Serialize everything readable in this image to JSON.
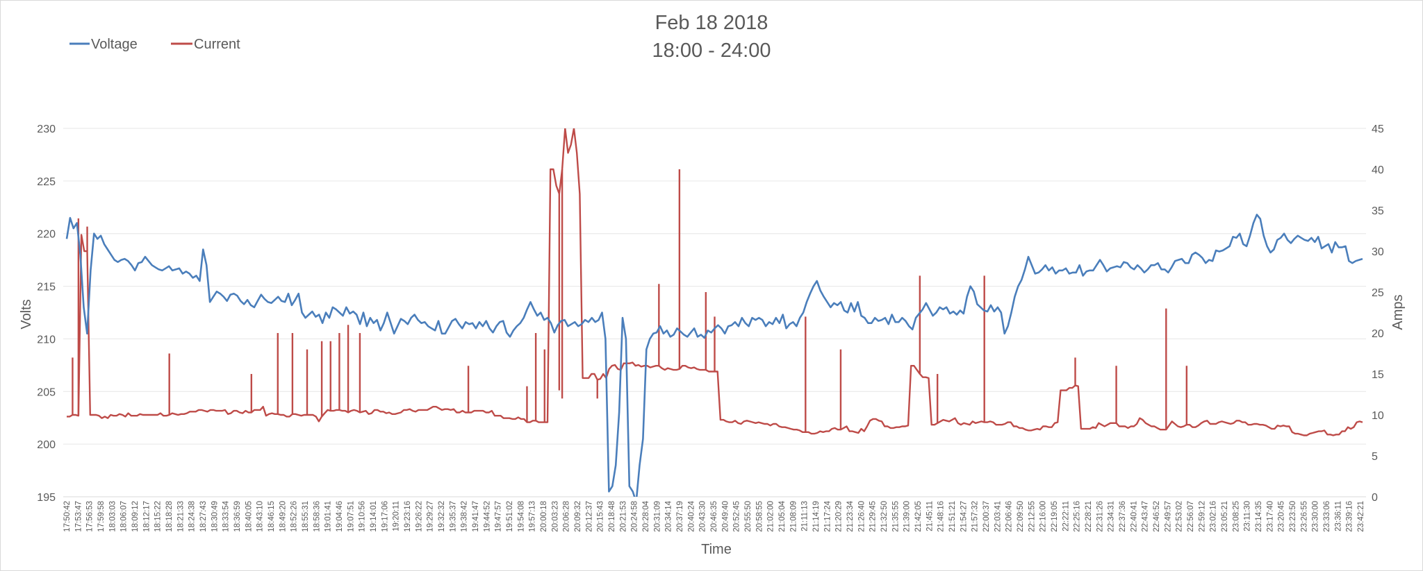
{
  "chart_data": {
    "type": "line",
    "title_line1": "Feb 18 2018",
    "title_line2": "18:00 - 24:00",
    "xlabel": "Time",
    "ylabel_left": "Volts",
    "ylabel_right": "Amps",
    "ylim_left": [
      195,
      230
    ],
    "ylim_right": [
      0,
      45
    ],
    "yticks_left": [
      "195",
      "200",
      "205",
      "210",
      "215",
      "220",
      "225",
      "230"
    ],
    "yticks_right": [
      "0",
      "5",
      "10",
      "15",
      "20",
      "25",
      "30",
      "35",
      "40",
      "45"
    ],
    "grid": true,
    "legend_position": "top-left",
    "x_tick_labels": [
      "17:50:42",
      "17:53:47",
      "17:56:53",
      "17:59:58",
      "18:03:03",
      "18:06:07",
      "18:09:12",
      "18:12:17",
      "18:15:22",
      "18:18:28",
      "18:21:33",
      "18:24:38",
      "18:27:43",
      "18:30:49",
      "18:33:54",
      "18:36:59",
      "18:40:05",
      "18:43:10",
      "18:46:15",
      "18:49:20",
      "18:52:26",
      "18:55:31",
      "18:58:36",
      "19:01:41",
      "19:04:46",
      "19:07:51",
      "19:10:56",
      "19:14:01",
      "19:17:06",
      "19:20:11",
      "19:23:16",
      "19:26:22",
      "19:29:27",
      "19:32:32",
      "19:35:37",
      "19:38:42",
      "19:41:47",
      "19:44:52",
      "19:47:57",
      "19:51:02",
      "19:54:08",
      "19:57:13",
      "20:00:18",
      "20:03:23",
      "20:06:28",
      "20:09:32",
      "20:12:37",
      "20:15:43",
      "20:18:48",
      "20:21:53",
      "20:24:58",
      "20:28:04",
      "20:31:09",
      "20:34:14",
      "20:37:19",
      "20:40:24",
      "20:43:30",
      "20:46:35",
      "20:49:40",
      "20:52:45",
      "20:55:50",
      "20:58:55",
      "21:02:00",
      "21:05:04",
      "21:08:09",
      "21:11:13",
      "21:14:19",
      "21:17:24",
      "21:20:29",
      "21:23:34",
      "21:26:40",
      "21:29:45",
      "21:32:50",
      "21:35:55",
      "21:39:00",
      "21:42:05",
      "21:45:11",
      "21:48:16",
      "21:51:21",
      "21:54:27",
      "21:57:32",
      "22:00:37",
      "22:03:41",
      "22:06:46",
      "22:09:50",
      "22:12:55",
      "22:16:00",
      "22:19:05",
      "22:22:11",
      "22:25:16",
      "22:28:21",
      "22:31:26",
      "22:34:31",
      "22:37:36",
      "22:40:41",
      "22:43:47",
      "22:46:52",
      "22:49:57",
      "22:53:02",
      "22:56:07",
      "22:59:12",
      "23:02:16",
      "23:05:21",
      "23:08:25",
      "23:11:30",
      "23:14:35",
      "23:17:40",
      "23:20:45",
      "23:23:50",
      "23:26:55",
      "23:30:00",
      "23:33:06",
      "23:36:11",
      "23:39:16",
      "23:42:21"
    ],
    "series": [
      {
        "name": "Voltage",
        "axis": "left",
        "color": "#4a7ebb",
        "values": [
          219.5,
          221.5,
          220.5,
          221,
          218,
          213,
          210.5,
          216.5,
          220,
          219.5,
          219.8,
          219,
          218.5,
          218,
          217.5,
          217.3,
          217.5,
          217.6,
          217.4,
          217,
          216.5,
          217.2,
          217.3,
          217.8,
          217.4,
          217,
          216.8,
          216.6,
          216.5,
          216.7,
          216.9,
          216.5,
          216.6,
          216.7,
          216.2,
          216.4,
          216.2,
          215.8,
          216,
          215.5,
          218.5,
          217,
          213.5,
          214,
          214.5,
          214.3,
          214,
          213.6,
          214.2,
          214.3,
          214.1,
          213.6,
          213.3,
          213.7,
          213.2,
          213,
          213.6,
          214.2,
          213.8,
          213.5,
          213.4,
          213.7,
          214,
          213.6,
          213.5,
          214.3,
          213.2,
          213.7,
          214.3,
          212.5,
          212,
          212.3,
          212.6,
          212.1,
          212.3,
          211.5,
          212.5,
          212,
          213,
          212.8,
          212.5,
          212.2,
          213,
          212.4,
          212.6,
          212.3,
          211.4,
          212.5,
          211.2,
          212,
          211.5,
          211.8,
          210.8,
          211.5,
          212.5,
          211.5,
          210.5,
          211.2,
          211.9,
          211.7,
          211.4,
          212,
          212.3,
          211.8,
          211.5,
          211.6,
          211.2,
          211,
          210.8,
          211.7,
          210.5,
          210.5,
          211.1,
          211.7,
          211.9,
          211.4,
          211,
          211.6,
          211.4,
          211.5,
          211,
          211.6,
          211.2,
          211.7,
          211,
          210.6,
          211.2,
          211.6,
          211.7,
          210.6,
          210.2,
          210.8,
          211.2,
          211.5,
          212,
          212.8,
          213.5,
          212.8,
          212.2,
          212.5,
          211.8,
          212,
          211.5,
          210.6,
          211.3,
          211.7,
          211.8,
          211.2,
          211.4,
          211.6,
          211.2,
          211.4,
          211.8,
          211.6,
          212,
          211.6,
          211.8,
          212.5,
          210,
          195.5,
          196,
          198,
          203,
          212,
          210,
          196,
          195.5,
          194.5,
          198,
          200.5,
          209,
          210,
          210.5,
          210.6,
          211.2,
          210.5,
          210.8,
          210.2,
          210.4,
          211,
          210.7,
          210.4,
          210.2,
          210.6,
          211,
          210.2,
          210.4,
          210.1,
          210.8,
          210.6,
          211,
          211.3,
          211,
          210.5,
          211.2,
          211.3,
          211.6,
          211.2,
          212,
          211.5,
          211.2,
          212,
          211.8,
          212,
          211.8,
          211.2,
          211.6,
          211.4,
          212,
          211.5,
          212.3,
          211,
          211.4,
          211.6,
          211.2,
          212,
          212.5,
          213.5,
          214.3,
          215,
          215.5,
          214.6,
          214,
          213.5,
          213,
          213.4,
          213.2,
          213.5,
          212.7,
          212.5,
          213.4,
          212.6,
          213.5,
          212.2,
          212,
          211.5,
          211.5,
          212,
          211.7,
          211.8,
          212,
          211.4,
          212.3,
          211.6,
          211.6,
          212,
          211.7,
          211.2,
          210.9,
          212,
          212.4,
          212.8,
          213.4,
          212.8,
          212.2,
          212.5,
          213,
          212.8,
          213,
          212.4,
          212.6,
          212.3,
          212.7,
          212.4,
          214,
          215,
          214.5,
          213.3,
          213,
          212.7,
          212.6,
          213.2,
          212.6,
          213,
          212.5,
          210.5,
          211.2,
          212.5,
          214,
          215,
          215.6,
          216.6,
          217.8,
          217,
          216.2,
          216.3,
          216.6,
          217,
          216.5,
          216.8,
          216.2,
          216.5,
          216.5,
          216.7,
          216.2,
          216.3,
          216.3,
          217,
          216,
          216.4,
          216.5,
          216.5,
          217,
          217.5,
          217,
          216.4,
          216.7,
          216.8,
          216.9,
          216.8,
          217.3,
          217.2,
          216.8,
          216.6,
          217,
          216.7,
          216.3,
          216.6,
          217,
          217,
          217.2,
          216.6,
          216.6,
          216.3,
          216.8,
          217.4,
          217.5,
          217.6,
          217.2,
          217.2,
          218,
          218.2,
          218,
          217.7,
          217.2,
          217.5,
          217.4,
          218.4,
          218.3,
          218.4,
          218.6,
          218.8,
          219.7,
          219.6,
          220,
          219,
          218.8,
          219.8,
          221,
          221.8,
          221.4,
          219.8,
          218.8,
          218.2,
          218.5,
          219.4,
          219.6,
          220,
          219.4,
          219.1,
          219.5,
          219.8,
          219.6,
          219.4,
          219.3,
          219.6,
          219.2,
          219.7,
          218.6,
          218.8,
          219,
          218.2,
          219.2,
          218.7,
          218.7,
          218.8,
          217.4,
          217.2,
          217.4,
          217.5,
          217.6
        ]
      },
      {
        "name": "Current",
        "axis": "right",
        "color": "#be4b48",
        "values": [
          9.8,
          9.8,
          10,
          10,
          9.9,
          32,
          30,
          30,
          10,
          10,
          10,
          9.9,
          9.6,
          9.8,
          9.6,
          10,
          9.9,
          9.9,
          10.1,
          10,
          9.8,
          10.2,
          9.9,
          9.9,
          9.9,
          10.1,
          10,
          10,
          10,
          10,
          10,
          10,
          10.2,
          9.9,
          9.9,
          10,
          10.2,
          10.1,
          10,
          10.1,
          10.1,
          10.2,
          10.4,
          10.4,
          10.4,
          10.6,
          10.6,
          10.5,
          10.4,
          10.6,
          10.6,
          10.5,
          10.5,
          10.5,
          10.6,
          10.1,
          10.2,
          10.5,
          10.5,
          10.3,
          10.2,
          10.5,
          10.3,
          10.3,
          10.6,
          10.6,
          10.6,
          11,
          9.9,
          10.1,
          10.2,
          10.1,
          10.1,
          10,
          10,
          9.8,
          9.8,
          10.1,
          10.1,
          10,
          9.9,
          10,
          10,
          10,
          10,
          9.8,
          9.2,
          9.8,
          10.2,
          10.6,
          10.5,
          10.5,
          10.6,
          10.6,
          10.5,
          10.5,
          10.3,
          10.5,
          10.6,
          10.5,
          10.3,
          10.4,
          10.5,
          10.1,
          10.2,
          10.6,
          10.6,
          10.4,
          10.4,
          10.2,
          10.3,
          10.1,
          10.1,
          10.2,
          10.3,
          10.6,
          10.6,
          10.7,
          10.5,
          10.4,
          10.6,
          10.6,
          10.6,
          10.6,
          10.8,
          11,
          11,
          10.8,
          10.6,
          10.7,
          10.7,
          10.6,
          10.7,
          10.3,
          10.3,
          10.5,
          10.3,
          10.3,
          10.3,
          10.5,
          10.5,
          10.5,
          10.5,
          10.3,
          10.3,
          10.5,
          9.9,
          9.9,
          9.9,
          9.6,
          9.6,
          9.6,
          9.5,
          9.5,
          9.7,
          9.5,
          9.5,
          9.1,
          9.1,
          9.3,
          9.3,
          9.1,
          9.1,
          9.1,
          9.1,
          40,
          40,
          38,
          37,
          40,
          45,
          42,
          43,
          45,
          42,
          37,
          14.5,
          14.5,
          14.5,
          15,
          15,
          14.3,
          14.4,
          15,
          14.5,
          15.6,
          16,
          16.1,
          15.6,
          15.5,
          16.3,
          16.3,
          16.3,
          16.4,
          16,
          16.1,
          15.9,
          16,
          16,
          15.8,
          15.9,
          16,
          16,
          15.7,
          15.5,
          15.7,
          15.6,
          15.5,
          15.5,
          15.6,
          16,
          16,
          15.8,
          15.7,
          15.8,
          15.6,
          15.5,
          15.5,
          15.5,
          15.3,
          15.3,
          15.3,
          15.3,
          9.4,
          9.4,
          9.2,
          9.1,
          9.1,
          9.3,
          9,
          8.9,
          9.2,
          9.3,
          9.2,
          9.1,
          9,
          9.1,
          9,
          8.9,
          8.9,
          8.7,
          8.9,
          8.9,
          8.6,
          8.5,
          8.5,
          8.4,
          8.3,
          8.2,
          8.2,
          8.1,
          7.9,
          7.9,
          7.9,
          7.7,
          7.7,
          7.8,
          8,
          7.9,
          8,
          8,
          8.3,
          8.4,
          8.2,
          8.2,
          8.4,
          8.6,
          8,
          8,
          7.9,
          7.8,
          8.3,
          8,
          8.6,
          9.3,
          9.5,
          9.5,
          9.3,
          9.2,
          8.6,
          8.6,
          8.4,
          8.4,
          8.5,
          8.5,
          8.6,
          8.6,
          8.7,
          16,
          16,
          15.5,
          15,
          14.6,
          14.6,
          14.5,
          8.8,
          8.8,
          9,
          9.2,
          9.4,
          9.3,
          9.2,
          9.4,
          9.6,
          9,
          8.8,
          9,
          8.9,
          8.8,
          9.2,
          9,
          9.1,
          9.2,
          9.1,
          9.1,
          9.2,
          9.1,
          8.8,
          8.8,
          8.8,
          8.9,
          9.1,
          9.1,
          8.6,
          8.6,
          8.4,
          8.4,
          8.2,
          8.1,
          8.1,
          8.2,
          8.3,
          8.2,
          8.6,
          8.6,
          8.5,
          8.5,
          9,
          9.1,
          13,
          13,
          13,
          13.3,
          13.3,
          13.6,
          13.5,
          8.3,
          8.3,
          8.3,
          8.3,
          8.5,
          8.4,
          9,
          8.8,
          8.6,
          8.8,
          9,
          9,
          9,
          8.6,
          8.6,
          8.6,
          8.4,
          8.6,
          8.6,
          8.9,
          9.6,
          9.4,
          9,
          8.8,
          8.6,
          8.6,
          8.4,
          8.2,
          8.2,
          8.2,
          8.7,
          9.2,
          8.9,
          8.6,
          8.5,
          8.6,
          8.8,
          8.8,
          8.5,
          8.5,
          8.7,
          9,
          9.2,
          9.3,
          8.9,
          8.9,
          8.9,
          9.1,
          9.2,
          9.1,
          9,
          8.9,
          9,
          9.3,
          9.3,
          9.1,
          9.1,
          8.8,
          8.8,
          8.9,
          8.9,
          8.8,
          8.8,
          8.7,
          8.5,
          8.3,
          8.3,
          8.7,
          8.6,
          8.7,
          8.6,
          8.6,
          7.9,
          7.7,
          7.7,
          7.6,
          7.5,
          7.5,
          7.7,
          7.8,
          7.9,
          8,
          8,
          8.1,
          7.6,
          7.6,
          7.5,
          7.6,
          7.6,
          8,
          8,
          8.5,
          8.3,
          8.5,
          9.1,
          9.2,
          9.1
        ]
      }
    ],
    "spikes_current": [
      {
        "time_index": 2,
        "peak": 17
      },
      {
        "time_index": 4,
        "peak": 34
      },
      {
        "time_index": 7,
        "peak": 33
      },
      {
        "time_index": 35,
        "peak": 17.5
      },
      {
        "time_index": 63,
        "peak": 15
      },
      {
        "time_index": 72,
        "peak": 20
      },
      {
        "time_index": 77,
        "peak": 20
      },
      {
        "time_index": 82,
        "peak": 18
      },
      {
        "time_index": 87,
        "peak": 19
      },
      {
        "time_index": 90,
        "peak": 19
      },
      {
        "time_index": 93,
        "peak": 20
      },
      {
        "time_index": 96,
        "peak": 21
      },
      {
        "time_index": 100,
        "peak": 20
      },
      {
        "time_index": 137,
        "peak": 16
      },
      {
        "time_index": 157,
        "peak": 13.5
      },
      {
        "time_index": 160,
        "peak": 20
      },
      {
        "time_index": 163,
        "peak": 18
      },
      {
        "time_index": 168,
        "peak": 13
      },
      {
        "time_index": 169,
        "peak": 12
      },
      {
        "time_index": 181,
        "peak": 12
      },
      {
        "time_index": 202,
        "peak": 26
      },
      {
        "time_index": 209,
        "peak": 40
      },
      {
        "time_index": 218,
        "peak": 25
      },
      {
        "time_index": 221,
        "peak": 22
      },
      {
        "time_index": 252,
        "peak": 22
      },
      {
        "time_index": 264,
        "peak": 18
      },
      {
        "time_index": 291,
        "peak": 27
      },
      {
        "time_index": 297,
        "peak": 15
      },
      {
        "time_index": 313,
        "peak": 27
      },
      {
        "time_index": 344,
        "peak": 17
      },
      {
        "time_index": 358,
        "peak": 16
      },
      {
        "time_index": 375,
        "peak": 23
      },
      {
        "time_index": 382,
        "peak": 16
      }
    ]
  }
}
